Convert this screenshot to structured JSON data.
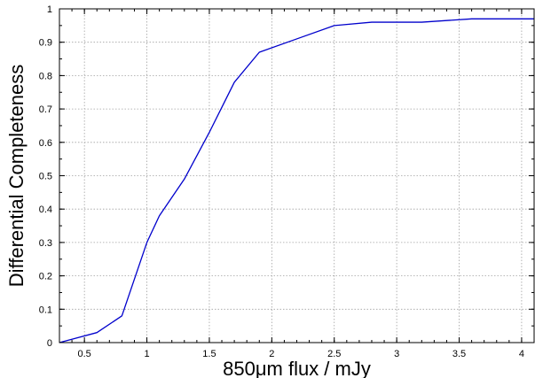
{
  "chart_data": {
    "type": "line",
    "title": "",
    "xlabel": "850μm flux / mJy",
    "ylabel": "Differential Completeness",
    "xlim": [
      0.3,
      4.1
    ],
    "ylim": [
      0,
      1
    ],
    "x_ticks": [
      {
        "value": 0.5,
        "label": "0.5"
      },
      {
        "value": 1.0,
        "label": "1"
      },
      {
        "value": 1.5,
        "label": "1.5"
      },
      {
        "value": 2.0,
        "label": "2"
      },
      {
        "value": 2.5,
        "label": "2.5"
      },
      {
        "value": 3.0,
        "label": "3"
      },
      {
        "value": 3.5,
        "label": "3.5"
      },
      {
        "value": 4.0,
        "label": "4"
      }
    ],
    "y_ticks": [
      {
        "value": 0,
        "label": "0"
      },
      {
        "value": 0.1,
        "label": "0.1"
      },
      {
        "value": 0.2,
        "label": "0.2"
      },
      {
        "value": 0.3,
        "label": "0.3"
      },
      {
        "value": 0.4,
        "label": "0.4"
      },
      {
        "value": 0.5,
        "label": "0.5"
      },
      {
        "value": 0.6,
        "label": "0.6"
      },
      {
        "value": 0.7,
        "label": "0.7"
      },
      {
        "value": 0.8,
        "label": "0.8"
      },
      {
        "value": 0.9,
        "label": "0.9"
      },
      {
        "value": 1.0,
        "label": "1"
      }
    ],
    "x_minor_step": 0.1,
    "y_minor_step": 0.05,
    "grid": true,
    "legend": "none",
    "series": [
      {
        "color": "#0000cc",
        "x": [
          0.3,
          0.6,
          0.8,
          1.0,
          1.1,
          1.3,
          1.5,
          1.7,
          1.9,
          2.2,
          2.5,
          2.8,
          3.2,
          3.6,
          4.1
        ],
        "y": [
          0.0,
          0.03,
          0.08,
          0.3,
          0.38,
          0.49,
          0.63,
          0.78,
          0.87,
          0.91,
          0.95,
          0.96,
          0.96,
          0.97,
          0.97
        ]
      }
    ]
  }
}
